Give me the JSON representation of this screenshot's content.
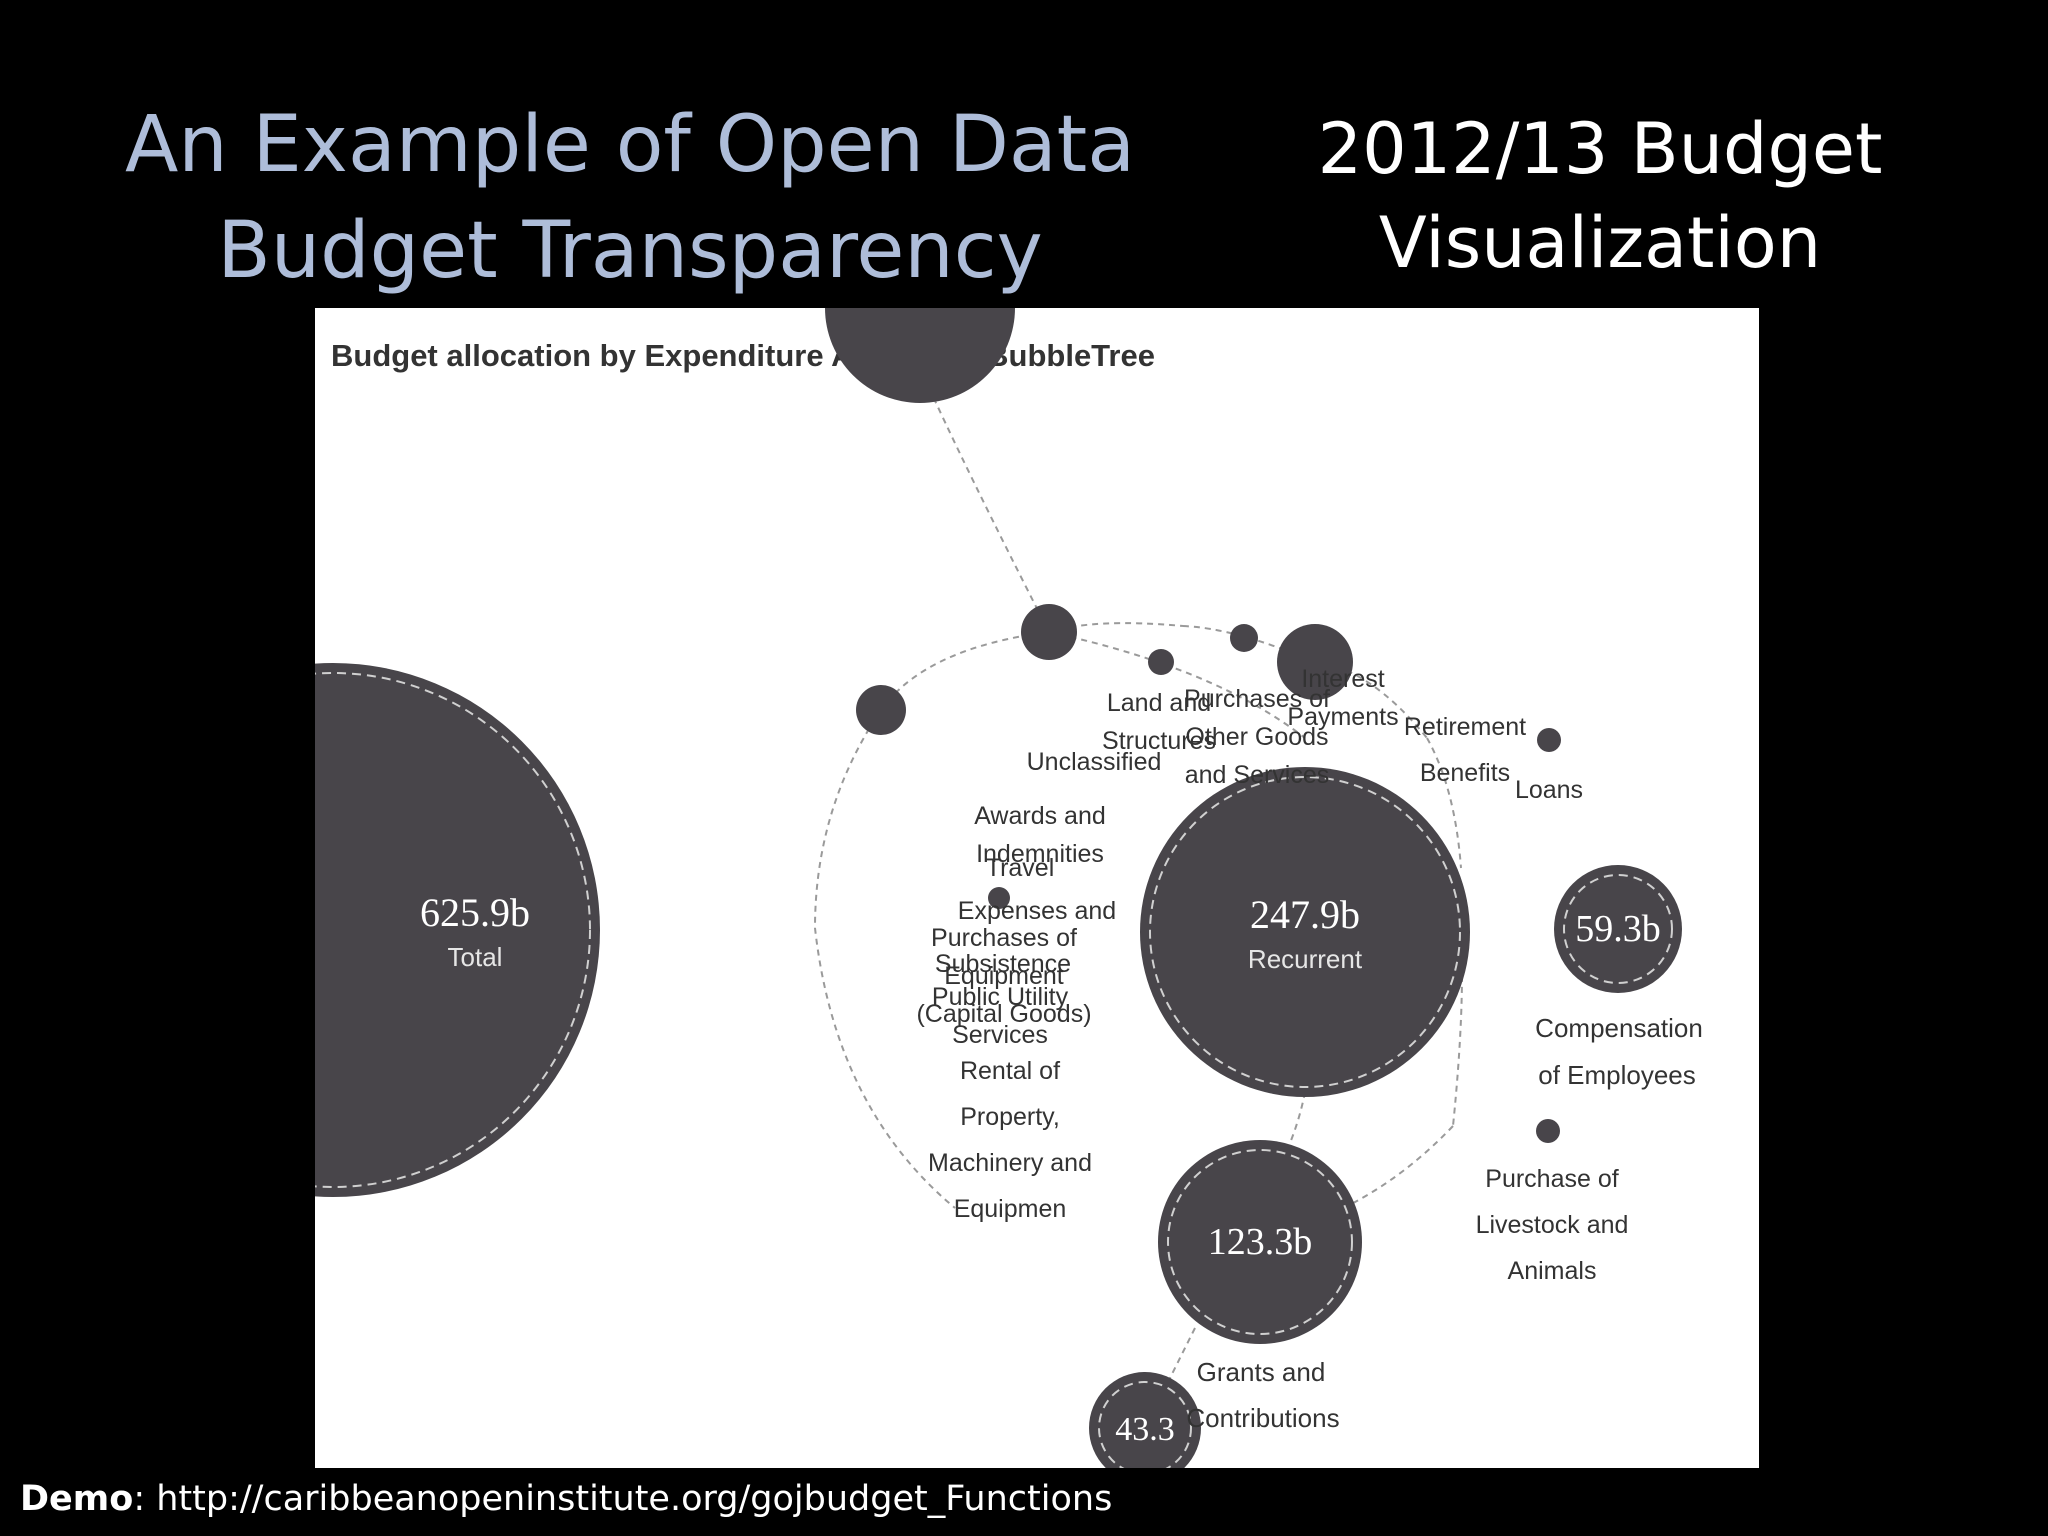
{
  "slide": {
    "title_lines": [
      "An Example of Open Data",
      "Budget Transparency"
    ],
    "subtitle_lines": [
      "2012/13 Budget",
      "Visualization"
    ]
  },
  "chart_data": {
    "type": "bubbletree",
    "title": "Budget allocation by Expenditure Analysis - BubbleTree",
    "bubbles": [
      {
        "id": "total",
        "value": "625.9b",
        "label": "Total"
      },
      {
        "id": "recurrent",
        "value": "247.9b",
        "label": "Recurrent"
      },
      {
        "id": "compensation",
        "value": "59.3b",
        "label": "Compensation of Employees"
      },
      {
        "id": "grants",
        "value": "123.3b",
        "label": "Grants and Contributions"
      },
      {
        "id": "partial",
        "value": "43.3"
      }
    ],
    "small_labels": [
      {
        "id": "interest",
        "lines": [
          "Interest",
          "Payments"
        ]
      },
      {
        "id": "retirement",
        "lines": [
          "Retirement",
          "Benefits"
        ]
      },
      {
        "id": "loans",
        "lines": [
          "Loans"
        ]
      },
      {
        "id": "purchases-goods",
        "lines": [
          "Purchases of",
          "Other Goods",
          "and Services"
        ]
      },
      {
        "id": "land",
        "lines": [
          "Land and",
          "Structures"
        ]
      },
      {
        "id": "unclassified",
        "lines": [
          "Unclassified"
        ]
      },
      {
        "id": "awards",
        "lines": [
          "Awards and",
          "Indemnities"
        ]
      },
      {
        "id": "travel",
        "lines": [
          "Travel"
        ]
      },
      {
        "id": "expenses",
        "lines": [
          "Expenses and"
        ]
      },
      {
        "id": "purchases-equipment",
        "lines": [
          "Purchases of",
          "Equipment",
          "(Capital Goods)"
        ]
      },
      {
        "id": "subsistence",
        "lines": [
          "Subsistence"
        ]
      },
      {
        "id": "utility",
        "lines": [
          "Public Utility",
          "Services"
        ]
      },
      {
        "id": "rental",
        "lines": [
          "Rental of",
          "Property,",
          "Machinery and",
          "Equipmen"
        ]
      },
      {
        "id": "livestock",
        "lines": [
          "Purchase of",
          "Livestock and",
          "Animals"
        ]
      }
    ],
    "colors": {
      "bubble": "#48454a",
      "ring": "#d0d0d0",
      "link": "#9a9a9a",
      "text": "#333333"
    }
  },
  "footer": {
    "demo_label": "Demo",
    "demo_url": ": http://caribbeanopeninstitute.org/gojbudget_Functions"
  }
}
